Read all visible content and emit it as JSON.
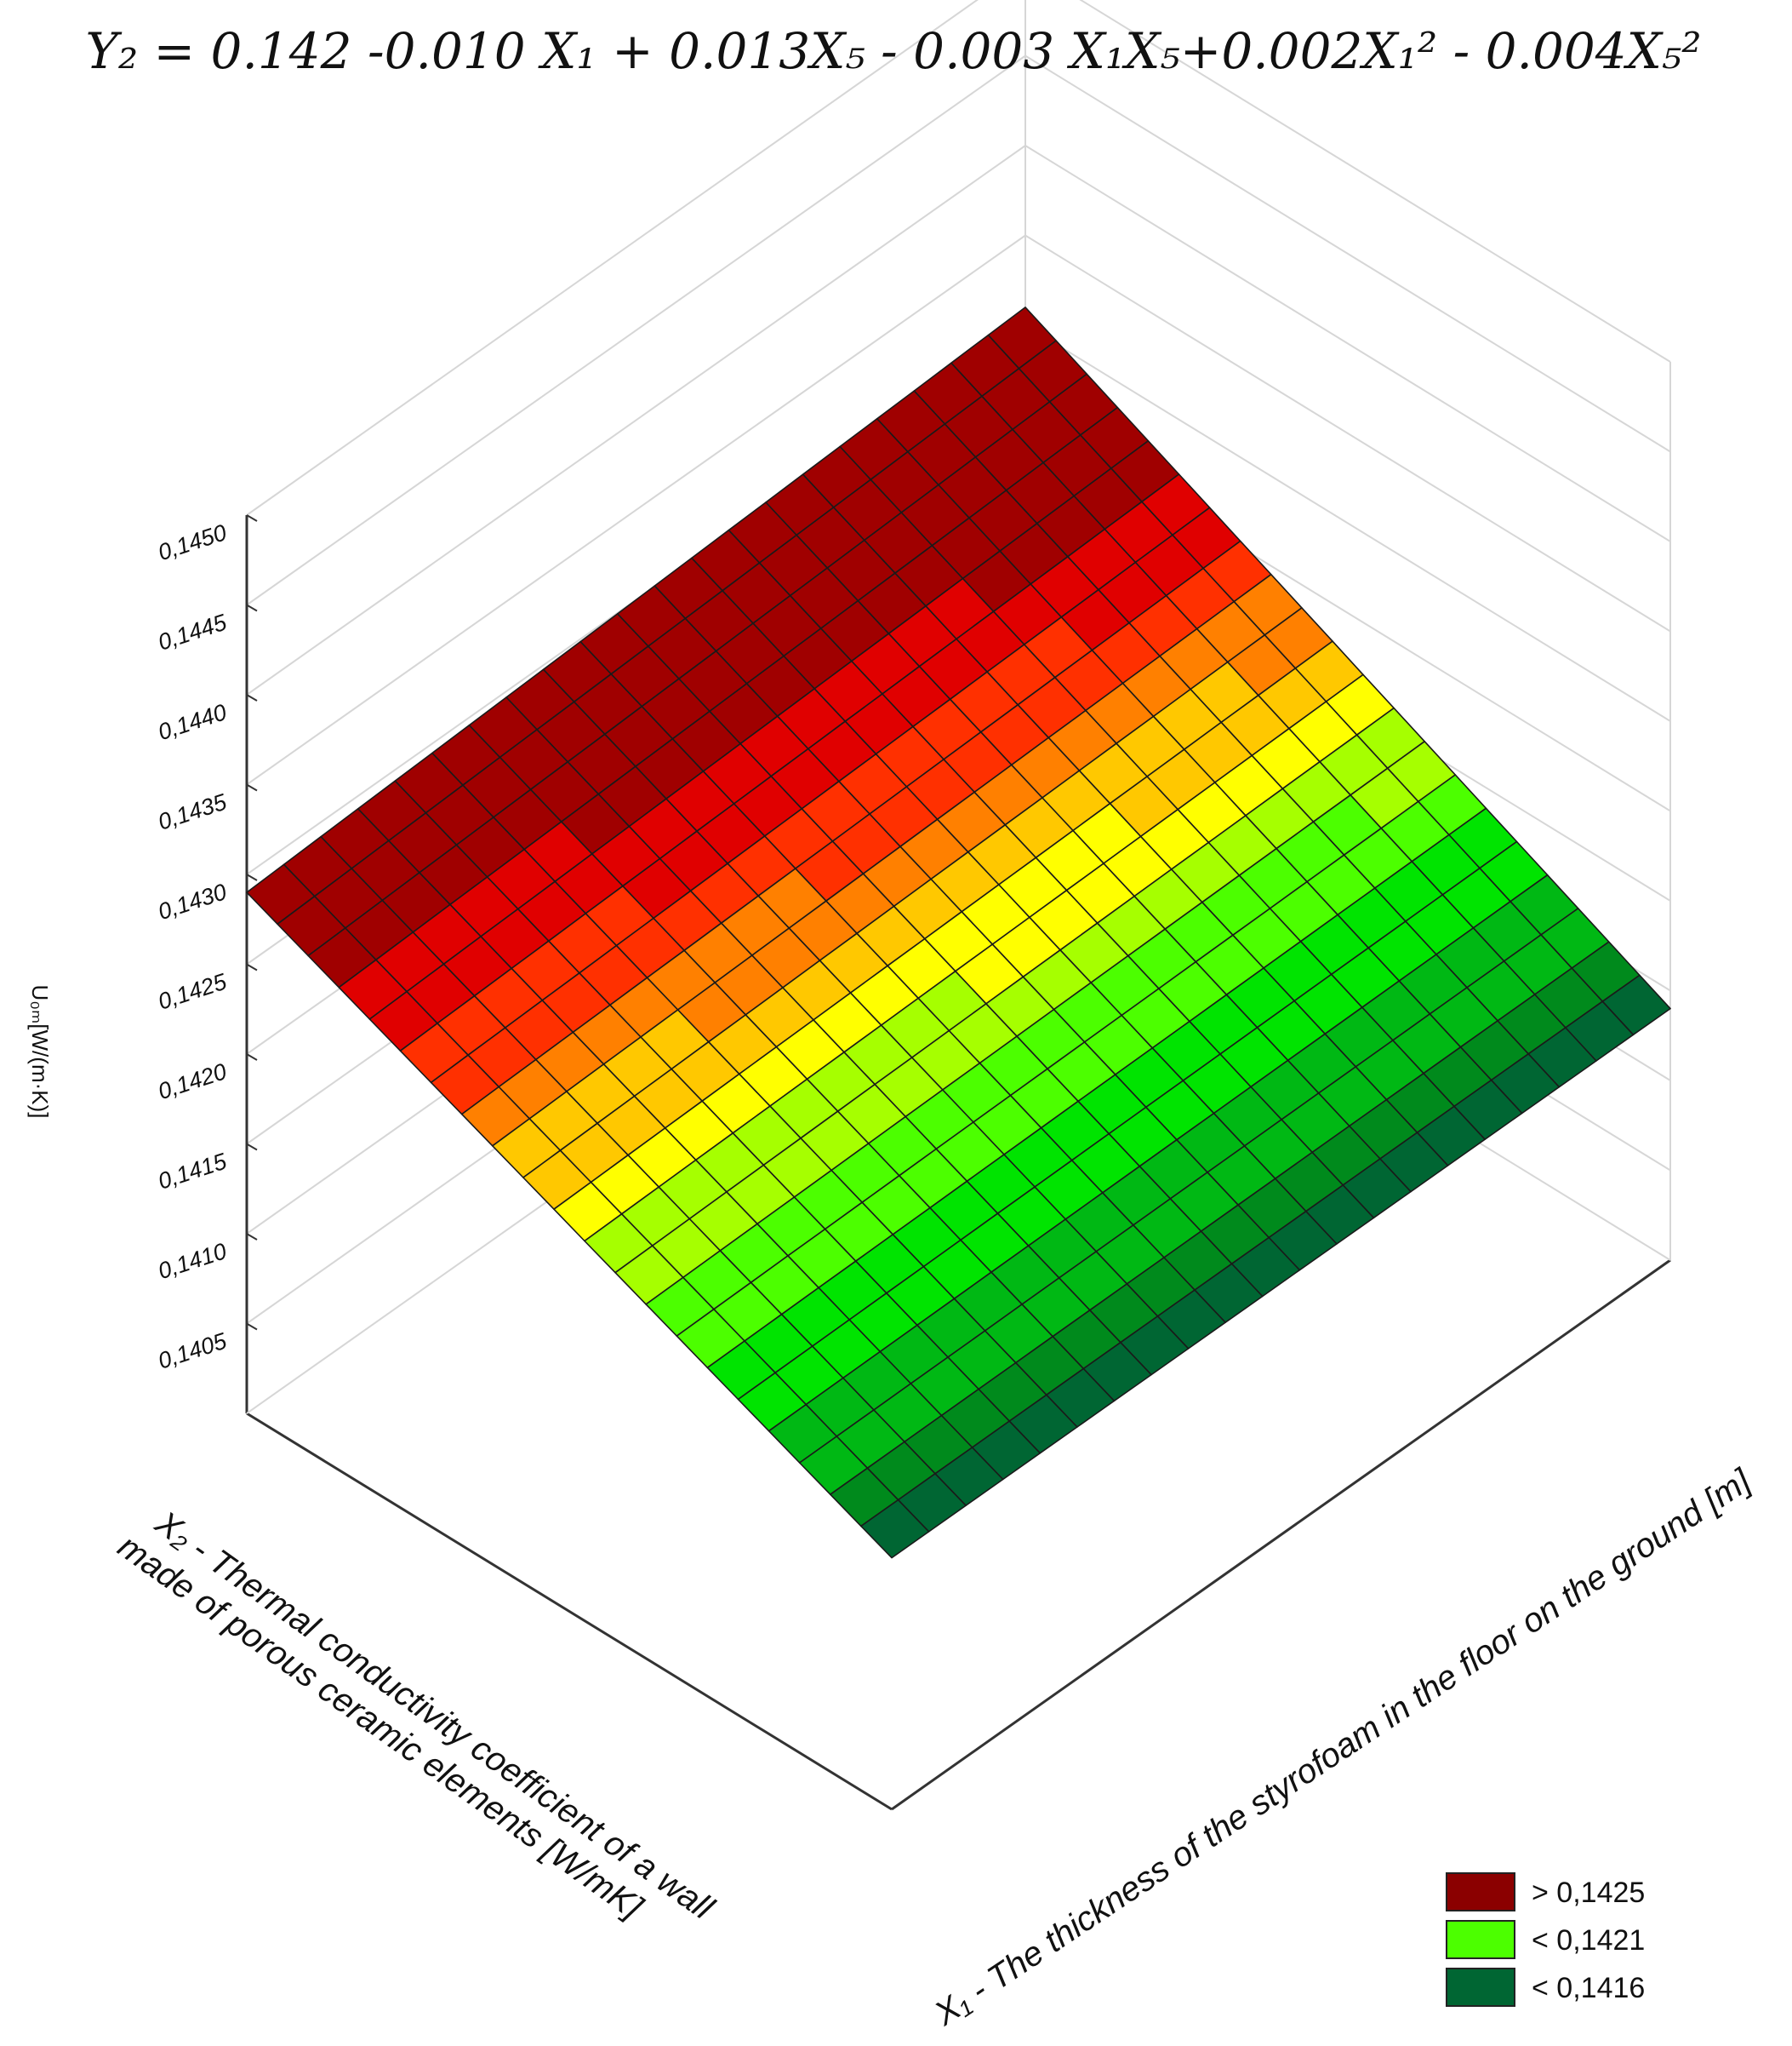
{
  "chart_data": {
    "type": "surface3d",
    "title": "Y₂ = 0.142 -0.010 X₁ + 0.013X₅ - 0.003 X₁X₅+0.002X₁² - 0.004X₅²",
    "equation": {
      "intercept": 0.142,
      "x1": -0.01,
      "x5": 0.013,
      "x1x5": -0.003,
      "x1sq": 0.002,
      "x5sq": -0.004
    },
    "xlabel": "X₁ - The thickness of the styrofoam in the floor on the ground [m]",
    "ylabel_lines": [
      "X₂ - Thermal conductivity coefficient of a wall",
      "made of porous ceramic elements   [W/mK]"
    ],
    "zlabel": "U₀ₘ[W/(m·K)]",
    "zlim": [
      0.14,
      0.145
    ],
    "zticks": [
      "0,1405",
      "0,1410",
      "0,1415",
      "0,1420",
      "0,1425",
      "0,1430",
      "0,1435",
      "0,1440",
      "0,1445",
      "0,1450"
    ],
    "grid_size": 21,
    "corner_values": {
      "left": 0.1429,
      "front": 0.1414,
      "back": 0.1431,
      "right": 0.1414
    },
    "color_scale": [
      {
        "max": 0.14145,
        "color": "#006633"
      },
      {
        "max": 0.14155,
        "color": "#008a1c"
      },
      {
        "max": 0.1417,
        "color": "#00b814"
      },
      {
        "max": 0.14185,
        "color": "#00e400"
      },
      {
        "max": 0.142,
        "color": "#4cff00"
      },
      {
        "max": 0.14212,
        "color": "#a6ff00"
      },
      {
        "max": 0.14222,
        "color": "#ffff00"
      },
      {
        "max": 0.14232,
        "color": "#ffc800"
      },
      {
        "max": 0.14242,
        "color": "#ff8000"
      },
      {
        "max": 0.14255,
        "color": "#ff3000"
      },
      {
        "max": 0.1427,
        "color": "#e00000"
      },
      {
        "max": 1,
        "color": "#a00000"
      }
    ],
    "legend_position": "bottom-right",
    "legend": [
      {
        "label": "> 0,1425",
        "color": "#8b0000"
      },
      {
        "label": "< 0,1421",
        "color": "#4cff00"
      },
      {
        "label": "< 0,1416",
        "color": "#006633"
      }
    ]
  }
}
